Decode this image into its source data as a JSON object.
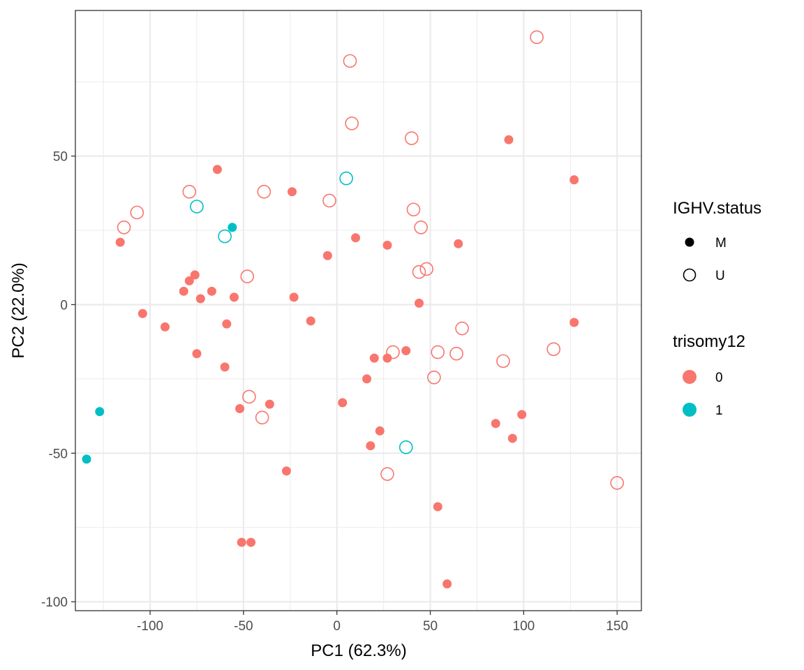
{
  "chart_data": {
    "type": "scatter",
    "xlabel": "PC1 (62.3%)",
    "ylabel": "PC2 (22.0%)",
    "xlim": [
      -140,
      163
    ],
    "ylim": [
      -103,
      99
    ],
    "x_ticks": [
      -100,
      -50,
      0,
      50,
      100,
      150
    ],
    "x_tick_labels": [
      "-100",
      "-50",
      "0",
      "50",
      "100",
      "150"
    ],
    "y_ticks": [
      -100,
      -50,
      0,
      50
    ],
    "y_tick_labels": [
      "-100",
      "-50",
      "0",
      "50"
    ],
    "grid": true,
    "legend_position": "right",
    "legends": [
      {
        "title": "IGHV.status",
        "aesthetic": "shape",
        "entries": [
          {
            "label": "M",
            "shape": "filled-circle"
          },
          {
            "label": "U",
            "shape": "open-circle"
          }
        ]
      },
      {
        "title": "trisomy12",
        "aesthetic": "color",
        "entries": [
          {
            "label": "0",
            "color": "#F8766D"
          },
          {
            "label": "1",
            "color": "#00BFC4"
          }
        ]
      }
    ],
    "colors": {
      "0": "#F8766D",
      "1": "#00BFC4"
    },
    "points": [
      {
        "x": 7,
        "y": 82,
        "ighv": "U",
        "trisomy12": "0"
      },
      {
        "x": 107,
        "y": 90,
        "ighv": "U",
        "trisomy12": "0"
      },
      {
        "x": 8,
        "y": 61,
        "ighv": "U",
        "trisomy12": "0"
      },
      {
        "x": 40,
        "y": 56,
        "ighv": "U",
        "trisomy12": "0"
      },
      {
        "x": 5,
        "y": 42.5,
        "ighv": "U",
        "trisomy12": "1"
      },
      {
        "x": -39,
        "y": 38,
        "ighv": "U",
        "trisomy12": "0"
      },
      {
        "x": -79,
        "y": 38,
        "ighv": "U",
        "trisomy12": "0"
      },
      {
        "x": -4,
        "y": 35,
        "ighv": "U",
        "trisomy12": "0"
      },
      {
        "x": -75,
        "y": 33,
        "ighv": "U",
        "trisomy12": "1"
      },
      {
        "x": -107,
        "y": 31,
        "ighv": "U",
        "trisomy12": "0"
      },
      {
        "x": 41,
        "y": 32,
        "ighv": "U",
        "trisomy12": "0"
      },
      {
        "x": 45,
        "y": 26,
        "ighv": "U",
        "trisomy12": "0"
      },
      {
        "x": -114,
        "y": 26,
        "ighv": "U",
        "trisomy12": "0"
      },
      {
        "x": -60,
        "y": 23,
        "ighv": "U",
        "trisomy12": "1"
      },
      {
        "x": 48,
        "y": 12,
        "ighv": "U",
        "trisomy12": "0"
      },
      {
        "x": 44,
        "y": 11,
        "ighv": "U",
        "trisomy12": "0"
      },
      {
        "x": -48,
        "y": 9.5,
        "ighv": "U",
        "trisomy12": "0"
      },
      {
        "x": 67,
        "y": -8,
        "ighv": "U",
        "trisomy12": "0"
      },
      {
        "x": 30,
        "y": -16,
        "ighv": "U",
        "trisomy12": "0"
      },
      {
        "x": 54,
        "y": -16,
        "ighv": "U",
        "trisomy12": "0"
      },
      {
        "x": 64,
        "y": -16.5,
        "ighv": "U",
        "trisomy12": "0"
      },
      {
        "x": 89,
        "y": -19,
        "ighv": "U",
        "trisomy12": "0"
      },
      {
        "x": 116,
        "y": -15,
        "ighv": "U",
        "trisomy12": "0"
      },
      {
        "x": 52,
        "y": -24.5,
        "ighv": "U",
        "trisomy12": "0"
      },
      {
        "x": -47,
        "y": -31,
        "ighv": "U",
        "trisomy12": "0"
      },
      {
        "x": -40,
        "y": -38,
        "ighv": "U",
        "trisomy12": "0"
      },
      {
        "x": 37,
        "y": -48,
        "ighv": "U",
        "trisomy12": "1"
      },
      {
        "x": 27,
        "y": -57,
        "ighv": "U",
        "trisomy12": "0"
      },
      {
        "x": 150,
        "y": -60,
        "ighv": "U",
        "trisomy12": "0"
      },
      {
        "x": 92,
        "y": 55.5,
        "ighv": "M",
        "trisomy12": "0"
      },
      {
        "x": 127,
        "y": 42,
        "ighv": "M",
        "trisomy12": "0"
      },
      {
        "x": -64,
        "y": 45.5,
        "ighv": "M",
        "trisomy12": "0"
      },
      {
        "x": -24,
        "y": 38,
        "ighv": "M",
        "trisomy12": "0"
      },
      {
        "x": -56,
        "y": 26,
        "ighv": "M",
        "trisomy12": "1"
      },
      {
        "x": 10,
        "y": 22.5,
        "ighv": "M",
        "trisomy12": "0"
      },
      {
        "x": 27,
        "y": 20,
        "ighv": "M",
        "trisomy12": "0"
      },
      {
        "x": 65,
        "y": 20.5,
        "ighv": "M",
        "trisomy12": "0"
      },
      {
        "x": -116,
        "y": 21,
        "ighv": "M",
        "trisomy12": "0"
      },
      {
        "x": -5,
        "y": 16.5,
        "ighv": "M",
        "trisomy12": "0"
      },
      {
        "x": -76,
        "y": 10,
        "ighv": "M",
        "trisomy12": "0"
      },
      {
        "x": -79,
        "y": 8,
        "ighv": "M",
        "trisomy12": "0"
      },
      {
        "x": -82,
        "y": 4.5,
        "ighv": "M",
        "trisomy12": "0"
      },
      {
        "x": -67,
        "y": 4.5,
        "ighv": "M",
        "trisomy12": "0"
      },
      {
        "x": -73,
        "y": 2,
        "ighv": "M",
        "trisomy12": "0"
      },
      {
        "x": -55,
        "y": 2.5,
        "ighv": "M",
        "trisomy12": "0"
      },
      {
        "x": -23,
        "y": 2.5,
        "ighv": "M",
        "trisomy12": "0"
      },
      {
        "x": 44,
        "y": 0.5,
        "ighv": "M",
        "trisomy12": "0"
      },
      {
        "x": -104,
        "y": -3,
        "ighv": "M",
        "trisomy12": "0"
      },
      {
        "x": -14,
        "y": -5.5,
        "ighv": "M",
        "trisomy12": "0"
      },
      {
        "x": 127,
        "y": -6,
        "ighv": "M",
        "trisomy12": "0"
      },
      {
        "x": -92,
        "y": -7.5,
        "ighv": "M",
        "trisomy12": "0"
      },
      {
        "x": -59,
        "y": -6.5,
        "ighv": "M",
        "trisomy12": "0"
      },
      {
        "x": -75,
        "y": -16.5,
        "ighv": "M",
        "trisomy12": "0"
      },
      {
        "x": 37,
        "y": -15.5,
        "ighv": "M",
        "trisomy12": "0"
      },
      {
        "x": 20,
        "y": -18,
        "ighv": "M",
        "trisomy12": "0"
      },
      {
        "x": 27,
        "y": -18,
        "ighv": "M",
        "trisomy12": "0"
      },
      {
        "x": -60,
        "y": -21,
        "ighv": "M",
        "trisomy12": "0"
      },
      {
        "x": 16,
        "y": -25,
        "ighv": "M",
        "trisomy12": "0"
      },
      {
        "x": -36,
        "y": -33.5,
        "ighv": "M",
        "trisomy12": "0"
      },
      {
        "x": 3,
        "y": -33,
        "ighv": "M",
        "trisomy12": "0"
      },
      {
        "x": -52,
        "y": -35,
        "ighv": "M",
        "trisomy12": "0"
      },
      {
        "x": -127,
        "y": -36,
        "ighv": "M",
        "trisomy12": "1"
      },
      {
        "x": 99,
        "y": -37,
        "ighv": "M",
        "trisomy12": "0"
      },
      {
        "x": 85,
        "y": -40,
        "ighv": "M",
        "trisomy12": "0"
      },
      {
        "x": 23,
        "y": -42.5,
        "ighv": "M",
        "trisomy12": "0"
      },
      {
        "x": 94,
        "y": -45,
        "ighv": "M",
        "trisomy12": "0"
      },
      {
        "x": 18,
        "y": -47.5,
        "ighv": "M",
        "trisomy12": "0"
      },
      {
        "x": -134,
        "y": -52,
        "ighv": "M",
        "trisomy12": "1"
      },
      {
        "x": -27,
        "y": -56,
        "ighv": "M",
        "trisomy12": "0"
      },
      {
        "x": 54,
        "y": -68,
        "ighv": "M",
        "trisomy12": "0"
      },
      {
        "x": -51,
        "y": -80,
        "ighv": "M",
        "trisomy12": "0"
      },
      {
        "x": -46,
        "y": -80,
        "ighv": "M",
        "trisomy12": "0"
      },
      {
        "x": 59,
        "y": -94,
        "ighv": "M",
        "trisomy12": "0"
      }
    ]
  }
}
